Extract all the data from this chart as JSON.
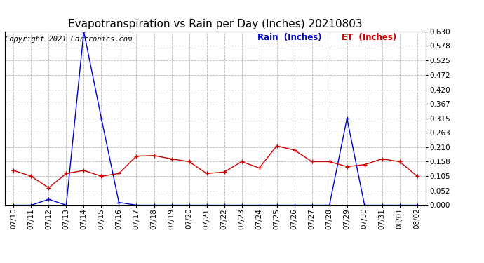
{
  "title": "Evapotranspiration vs Rain per Day (Inches) 20210803",
  "copyright": "Copyright 2021 Cartronics.com",
  "legend_rain": "Rain  (Inches)",
  "legend_et": "ET  (Inches)",
  "dates": [
    "07/10",
    "07/11",
    "07/12",
    "07/13",
    "07/14",
    "07/15",
    "07/16",
    "07/17",
    "07/18",
    "07/19",
    "07/20",
    "07/21",
    "07/22",
    "07/23",
    "07/24",
    "07/25",
    "07/26",
    "07/27",
    "07/28",
    "07/29",
    "07/30",
    "07/31",
    "08/01",
    "08/02"
  ],
  "rain": [
    0.0,
    0.0,
    0.021,
    0.0,
    0.63,
    0.315,
    0.01,
    0.0,
    0.0,
    0.0,
    0.0,
    0.0,
    0.0,
    0.0,
    0.0,
    0.0,
    0.0,
    0.0,
    0.0,
    0.315,
    0.0,
    0.0,
    0.0,
    0.0
  ],
  "et": [
    0.126,
    0.105,
    0.063,
    0.115,
    0.126,
    0.105,
    0.115,
    0.178,
    0.18,
    0.168,
    0.158,
    0.115,
    0.12,
    0.158,
    0.135,
    0.215,
    0.2,
    0.158,
    0.158,
    0.14,
    0.147,
    0.168,
    0.158,
    0.105
  ],
  "rain_color": "#0000cc",
  "et_color": "#cc0000",
  "background_color": "#ffffff",
  "grid_color": "#999999",
  "ylim_min": 0.0,
  "ylim_max": 0.63,
  "yticks": [
    0.0,
    0.052,
    0.105,
    0.158,
    0.21,
    0.263,
    0.315,
    0.367,
    0.42,
    0.472,
    0.525,
    0.578,
    0.63
  ],
  "title_fontsize": 11,
  "tick_fontsize": 7.5,
  "legend_fontsize": 8.5,
  "copyright_fontsize": 7.5
}
